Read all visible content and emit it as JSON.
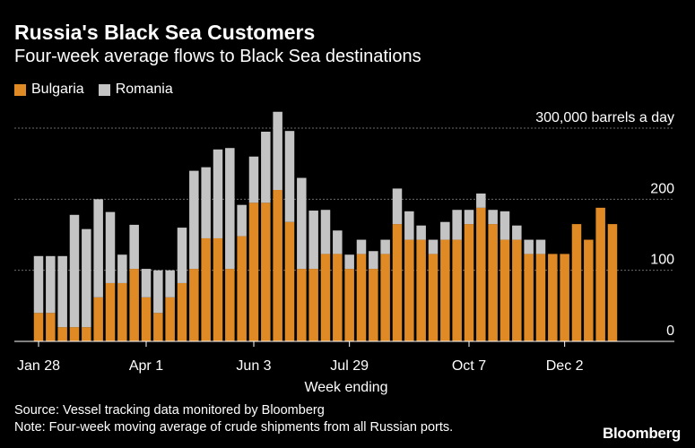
{
  "title": "Russia's Black Sea Customers",
  "subtitle": "Four-week average flows to Black Sea destinations",
  "source": "Source: Vessel tracking data monitored by Bloomberg",
  "note": "Note: Four-week moving average of crude shipments from all Russian ports.",
  "brand": "Bloomberg",
  "colors": {
    "background": "#000000",
    "bulgaria": "#e08a25",
    "romania": "#c4c4c4",
    "grid": "#6b6b6b",
    "text": "#ffffff"
  },
  "chart_data": {
    "type": "bar",
    "stacked": true,
    "xlabel": "Week ending",
    "ylabel": "",
    "unit_label": "300,000 barrels a day",
    "ylim": [
      0,
      300
    ],
    "yticks": [
      0,
      100,
      200,
      300
    ],
    "ytick_labels": [
      "0",
      "100",
      "200",
      "300,000 barrels a day"
    ],
    "xtick_labels": [
      {
        "label": "Jan 28",
        "index": 0
      },
      {
        "label": "Apr 1",
        "index": 9
      },
      {
        "label": "Jun 3",
        "index": 18
      },
      {
        "label": "Jul 29",
        "index": 26
      },
      {
        "label": "Oct 7",
        "index": 36
      },
      {
        "label": "Dec 2",
        "index": 44
      }
    ],
    "grid": true,
    "legend_position": "top-left",
    "series": [
      {
        "name": "Bulgaria",
        "color": "#e08a25",
        "values": [
          40,
          40,
          20,
          20,
          20,
          62,
          82,
          82,
          102,
          62,
          40,
          62,
          82,
          102,
          145,
          145,
          102,
          148,
          195,
          195,
          213,
          168,
          102,
          102,
          123,
          123,
          102,
          123,
          102,
          123,
          165,
          143,
          143,
          123,
          143,
          143,
          165,
          188,
          165,
          143,
          143,
          123,
          123,
          123,
          123,
          165,
          143,
          188,
          165
        ]
      },
      {
        "name": "Romania",
        "color": "#c4c4c4",
        "values": [
          80,
          80,
          100,
          158,
          138,
          138,
          100,
          40,
          62,
          40,
          60,
          38,
          78,
          138,
          100,
          125,
          170,
          44,
          65,
          100,
          110,
          128,
          128,
          82,
          62,
          33,
          20,
          20,
          25,
          20,
          50,
          40,
          20,
          20,
          25,
          42,
          20,
          20,
          20,
          40,
          20,
          20,
          20,
          0,
          0,
          0,
          0,
          0,
          0
        ]
      }
    ]
  }
}
